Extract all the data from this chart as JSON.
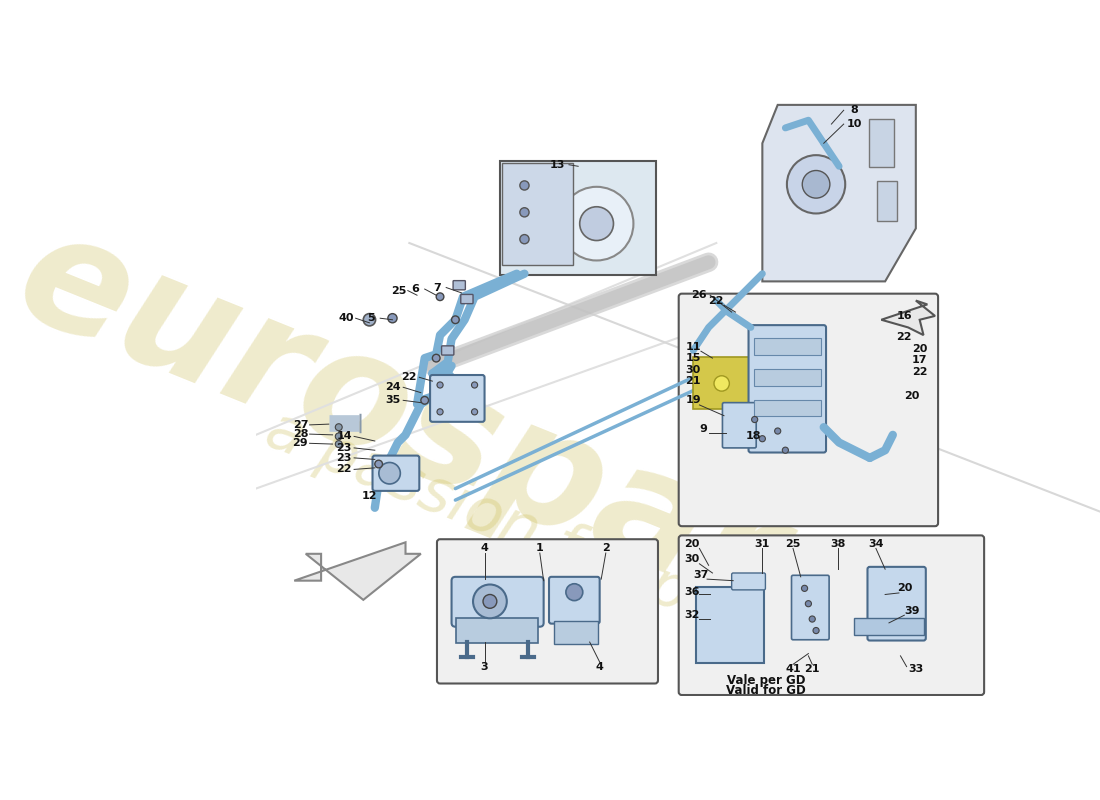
{
  "bg": "#ffffff",
  "wm1": "eurospares",
  "wm2": "a passion for parts",
  "wm_color": "#c8b84a",
  "wm_alpha": 0.28,
  "hose_color": "#7ab0d4",
  "hose_lw": 6,
  "label_fs": 8,
  "label_color": "#111111",
  "line_lw": 0.7,
  "line_color": "#333333",
  "note1": "Vale per GD",
  "note2": "Valid for GD",
  "comp_fill": "#c5d8ec",
  "comp_edge": "#4a6a8a",
  "yellow_fill": "#d4c84a",
  "yellow_edge": "#a09820"
}
